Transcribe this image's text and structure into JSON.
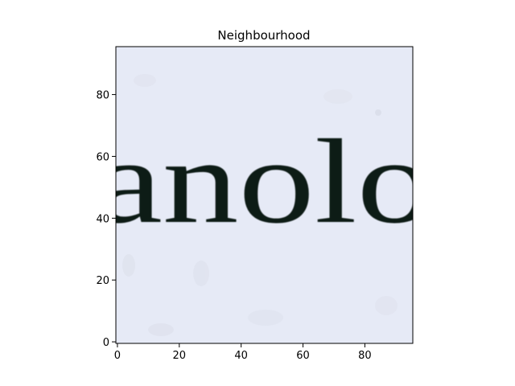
{
  "figure": {
    "title": "Neighbourhood"
  },
  "image_content": {
    "text": "anolo",
    "background_color": "#e6eaf6",
    "ink_color": "#0f1a14"
  },
  "axes": {
    "x_ticks": [
      "0",
      "20",
      "40",
      "60",
      "80"
    ],
    "y_ticks": [
      "0",
      "20",
      "40",
      "60",
      "80"
    ],
    "xlim": [
      -0.5,
      95.5
    ],
    "ylim": [
      95.5,
      -0.5
    ]
  }
}
